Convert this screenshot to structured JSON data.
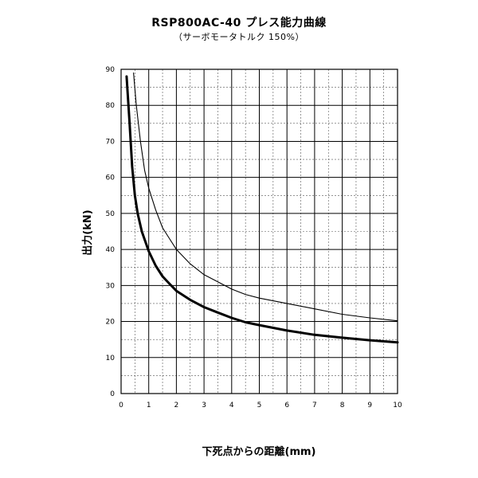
{
  "chart_data": {
    "type": "line",
    "title": "RSP800AC-40  プレス能力曲線",
    "subtitle": "（サーボモータトルク  150%）",
    "xlabel": "下死点からの距離(mm)",
    "ylabel": "出力(kN)",
    "xlim": [
      0,
      10
    ],
    "ylim": [
      0,
      90
    ],
    "x_ticks": [
      "0",
      "1",
      "2",
      "3",
      "4",
      "5",
      "6",
      "7",
      "8",
      "9",
      "10"
    ],
    "y_ticks": [
      "0",
      "10",
      "20",
      "30",
      "40",
      "50",
      "60",
      "70",
      "80",
      "90"
    ],
    "grid": true,
    "series": [
      {
        "style": "thin",
        "x": [
          0.45,
          0.55,
          0.7,
          0.85,
          1.0,
          1.25,
          1.5,
          1.75,
          2.0,
          2.5,
          3.0,
          3.5,
          4.0,
          4.5,
          5.0,
          6.0,
          7.0,
          8.0,
          9.0,
          10.0
        ],
        "y": [
          89,
          80,
          70,
          62,
          57,
          51,
          46,
          43,
          40,
          36,
          33,
          31,
          29,
          27.5,
          26.5,
          25,
          23.5,
          22,
          21,
          20.2
        ]
      },
      {
        "style": "thick",
        "x": [
          0.2,
          0.3,
          0.4,
          0.5,
          0.6,
          0.75,
          1.0,
          1.25,
          1.5,
          1.75,
          2.0,
          2.5,
          3.0,
          3.5,
          4.0,
          4.5,
          5.0,
          6.0,
          7.0,
          8.0,
          9.0,
          10.0
        ],
        "y": [
          88,
          76,
          63,
          55,
          50,
          45,
          39.5,
          35.5,
          32.5,
          30.5,
          28.5,
          26,
          24,
          22.5,
          21,
          19.8,
          19,
          17.5,
          16.3,
          15.5,
          14.8,
          14.2
        ]
      }
    ]
  }
}
